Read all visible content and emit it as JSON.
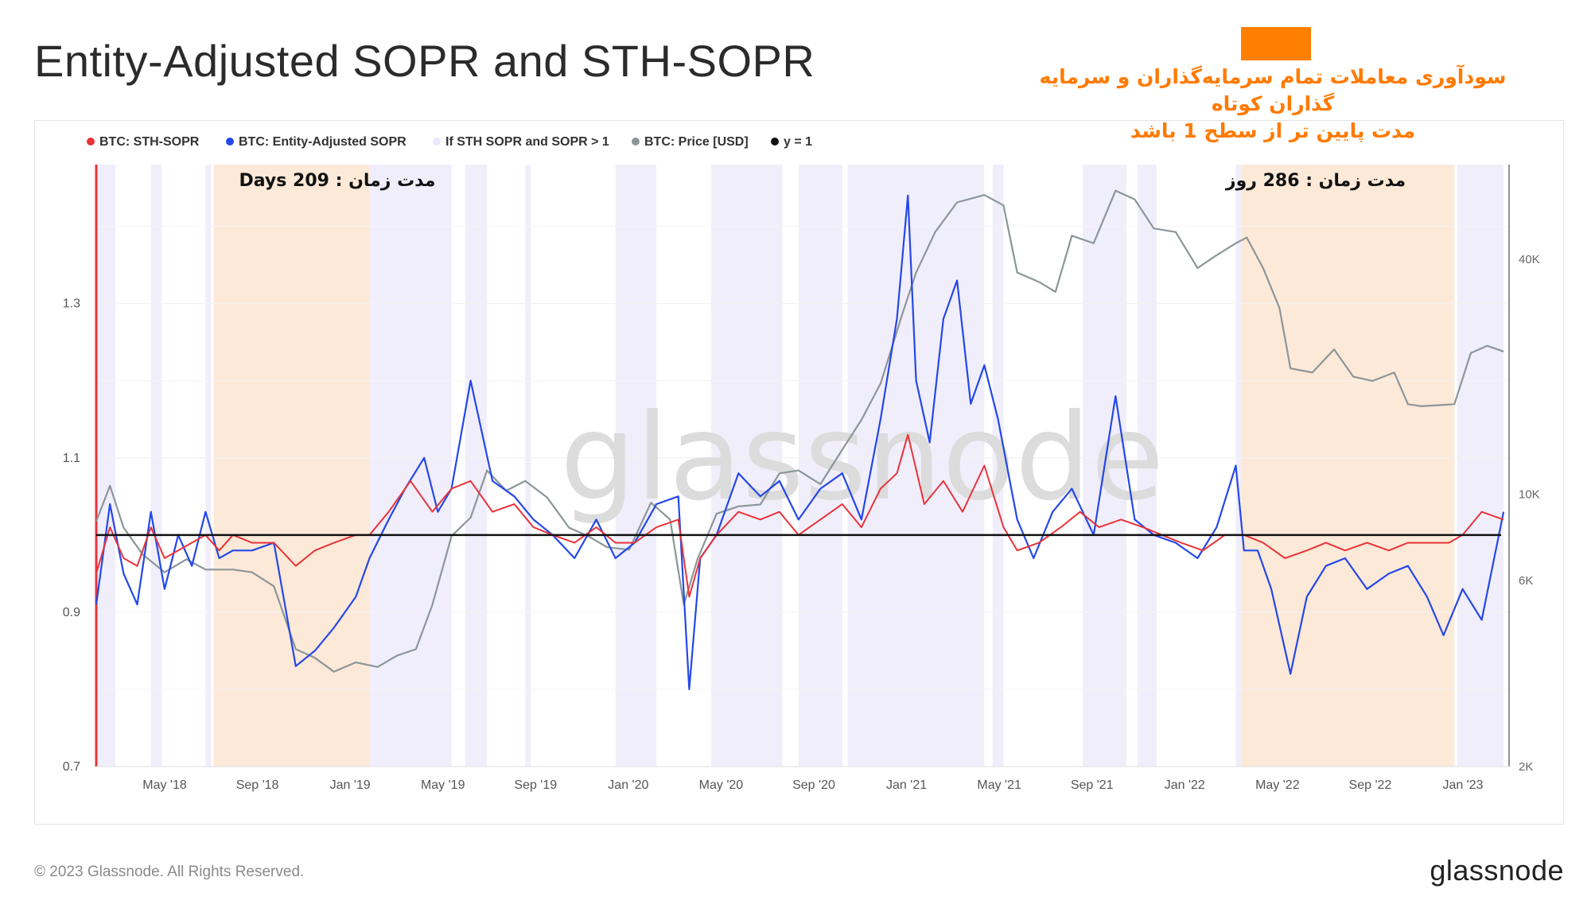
{
  "title": "Entity-Adjusted SOPR and STH-SOPR",
  "annotation": {
    "line1": "سودآوری معاملات تمام سرمایه‌گذاران و سرمایه",
    "line2": "گذاران کوتاه",
    "line3": "مدت پایین تر از سطح 1 باشد",
    "color": "#ff7f00"
  },
  "footer": {
    "copyright": "© 2023 Glassnode. All Rights Reserved.",
    "logo": "glassnode"
  },
  "chart_data": {
    "type": "line",
    "watermark": "glassnode",
    "legend": [
      {
        "name": "BTC: STH-SOPR",
        "color": "#e8343a"
      },
      {
        "name": "BTC: Entity-Adjusted SOPR",
        "color": "#2448e8"
      },
      {
        "name": "If STH SOPR and SOPR > 1",
        "color": "#ece8fb"
      },
      {
        "name": "BTC: Price [USD]",
        "color": "#8c9699"
      },
      {
        "name": "y = 1",
        "color": "#111111"
      }
    ],
    "x_ticks": [
      "May '18",
      "Sep '18",
      "Jan '19",
      "May '19",
      "Sep '19",
      "Jan '20",
      "May '20",
      "Sep '20",
      "Jan '21",
      "May '21",
      "Sep '21",
      "Jan '22",
      "May '22",
      "Sep '22",
      "Jan '23"
    ],
    "x_range": [
      2018.05,
      2023.22
    ],
    "y_left": {
      "range": [
        0.7,
        1.48
      ],
      "ticks": [
        0.7,
        0.9,
        1.1,
        1.3
      ]
    },
    "y_right": {
      "scale": "log",
      "range": [
        2000,
        70000
      ],
      "ticks": [
        2000,
        6000,
        10000,
        40000
      ],
      "tick_labels": [
        "2K",
        "6K",
        "10K",
        "40K"
      ]
    },
    "durations": [
      {
        "label": "مدت زمان : 209 Days",
        "start": 2018.48,
        "end": 2019.05
      },
      {
        "label": "مدت زمان : 286 روز",
        "start": 2022.24,
        "end": 2023.02
      }
    ],
    "highlight_periods": [
      [
        2018.05,
        2018.12
      ],
      [
        2018.25,
        2018.29
      ],
      [
        2018.45,
        2018.47
      ],
      [
        2019.05,
        2019.35
      ],
      [
        2019.4,
        2019.48
      ],
      [
        2019.62,
        2019.64
      ],
      [
        2019.95,
        2020.1
      ],
      [
        2020.3,
        2020.56
      ],
      [
        2020.62,
        2020.78
      ],
      [
        2020.8,
        2021.3
      ],
      [
        2021.33,
        2021.37
      ],
      [
        2021.66,
        2021.82
      ],
      [
        2021.86,
        2021.93
      ],
      [
        2022.22,
        2022.24
      ],
      [
        2023.03,
        2023.2
      ]
    ],
    "series": [
      {
        "name": "BTC: Price [USD]",
        "axis": "right",
        "x": [
          2018.05,
          2018.1,
          2018.15,
          2018.22,
          2018.3,
          2018.38,
          2018.45,
          2018.55,
          2018.62,
          2018.7,
          2018.78,
          2018.85,
          2018.92,
          2019.0,
          2019.08,
          2019.15,
          2019.22,
          2019.28,
          2019.35,
          2019.42,
          2019.48,
          2019.55,
          2019.62,
          2019.7,
          2019.78,
          2019.85,
          2019.92,
          2020.0,
          2020.08,
          2020.15,
          2020.2,
          2020.25,
          2020.32,
          2020.4,
          2020.48,
          2020.55,
          2020.62,
          2020.7,
          2020.78,
          2020.85,
          2020.92,
          2021.0,
          2021.05,
          2021.12,
          2021.2,
          2021.3,
          2021.37,
          2021.42,
          2021.5,
          2021.56,
          2021.62,
          2021.7,
          2021.78,
          2021.85,
          2021.92,
          2022.0,
          2022.08,
          2022.15,
          2022.22,
          2022.26,
          2022.32,
          2022.38,
          2022.42,
          2022.5,
          2022.58,
          2022.65,
          2022.72,
          2022.8,
          2022.85,
          2022.9,
          2022.96,
          2023.02,
          2023.08,
          2023.14,
          2023.2
        ],
        "y": [
          8500,
          10500,
          8200,
          7000,
          6300,
          6800,
          6400,
          6400,
          6300,
          5800,
          4000,
          3800,
          3500,
          3700,
          3600,
          3850,
          4000,
          5200,
          7800,
          8700,
          11500,
          10200,
          10800,
          9800,
          8200,
          7800,
          7300,
          7200,
          9500,
          8600,
          5200,
          6800,
          8900,
          9300,
          9400,
          11300,
          11500,
          10600,
          13000,
          15500,
          19200,
          29000,
          37000,
          47000,
          56000,
          58500,
          55000,
          37000,
          35000,
          33000,
          46000,
          44000,
          60000,
          57000,
          48000,
          47000,
          38000,
          41000,
          44000,
          45500,
          38000,
          30000,
          21000,
          20500,
          23500,
          20000,
          19500,
          20500,
          17000,
          16800,
          16900,
          17000,
          23000,
          24000,
          23200
        ]
      },
      {
        "name": "BTC: Entity-Adjusted SOPR",
        "axis": "left",
        "x": [
          2018.05,
          2018.1,
          2018.15,
          2018.2,
          2018.25,
          2018.3,
          2018.35,
          2018.4,
          2018.45,
          2018.5,
          2018.55,
          2018.62,
          2018.7,
          2018.78,
          2018.85,
          2018.92,
          2019.0,
          2019.05,
          2019.12,
          2019.18,
          2019.25,
          2019.3,
          2019.35,
          2019.42,
          2019.5,
          2019.58,
          2019.65,
          2019.72,
          2019.8,
          2019.88,
          2019.95,
          2020.02,
          2020.1,
          2020.18,
          2020.22,
          2020.26,
          2020.32,
          2020.4,
          2020.48,
          2020.55,
          2020.62,
          2020.7,
          2020.78,
          2020.85,
          2020.92,
          2020.98,
          2021.02,
          2021.05,
          2021.1,
          2021.15,
          2021.2,
          2021.25,
          2021.3,
          2021.35,
          2021.42,
          2021.48,
          2021.55,
          2021.62,
          2021.7,
          2021.78,
          2021.85,
          2021.92,
          2022.0,
          2022.08,
          2022.15,
          2022.22,
          2022.25,
          2022.3,
          2022.35,
          2022.42,
          2022.48,
          2022.55,
          2022.62,
          2022.7,
          2022.78,
          2022.85,
          2022.92,
          2022.98,
          2023.05,
          2023.12,
          2023.2
        ],
        "y": [
          0.91,
          1.04,
          0.95,
          0.91,
          1.03,
          0.93,
          1.0,
          0.96,
          1.03,
          0.97,
          0.98,
          0.98,
          0.99,
          0.83,
          0.85,
          0.88,
          0.92,
          0.97,
          1.02,
          1.06,
          1.1,
          1.03,
          1.06,
          1.2,
          1.07,
          1.05,
          1.02,
          1.0,
          0.97,
          1.02,
          0.97,
          0.99,
          1.04,
          1.05,
          0.8,
          0.97,
          1.0,
          1.08,
          1.05,
          1.07,
          1.02,
          1.06,
          1.08,
          1.02,
          1.15,
          1.28,
          1.44,
          1.2,
          1.12,
          1.28,
          1.33,
          1.17,
          1.22,
          1.15,
          1.02,
          0.97,
          1.03,
          1.06,
          1.0,
          1.18,
          1.02,
          1.0,
          0.99,
          0.97,
          1.01,
          1.09,
          0.98,
          0.98,
          0.93,
          0.82,
          0.92,
          0.96,
          0.97,
          0.93,
          0.95,
          0.96,
          0.92,
          0.87,
          0.93,
          0.89,
          1.03
        ]
      },
      {
        "name": "BTC: STH-SOPR",
        "axis": "left",
        "x": [
          2018.05,
          2018.1,
          2018.15,
          2018.2,
          2018.25,
          2018.3,
          2018.35,
          2018.4,
          2018.45,
          2018.5,
          2018.55,
          2018.62,
          2018.7,
          2018.78,
          2018.85,
          2018.92,
          2019.0,
          2019.05,
          2019.12,
          2019.2,
          2019.28,
          2019.35,
          2019.42,
          2019.5,
          2019.58,
          2019.65,
          2019.72,
          2019.8,
          2019.88,
          2019.95,
          2020.02,
          2020.1,
          2020.18,
          2020.22,
          2020.26,
          2020.32,
          2020.4,
          2020.48,
          2020.55,
          2020.62,
          2020.7,
          2020.78,
          2020.85,
          2020.92,
          2020.98,
          2021.02,
          2021.08,
          2021.15,
          2021.22,
          2021.3,
          2021.37,
          2021.42,
          2021.5,
          2021.58,
          2021.65,
          2021.72,
          2021.8,
          2021.88,
          2021.95,
          2022.02,
          2022.1,
          2022.18,
          2022.25,
          2022.32,
          2022.4,
          2022.48,
          2022.55,
          2022.62,
          2022.7,
          2022.78,
          2022.85,
          2022.92,
          2023.0,
          2023.05,
          2023.12,
          2023.2
        ],
        "y": [
          0.95,
          1.01,
          0.97,
          0.96,
          1.01,
          0.97,
          0.98,
          0.99,
          1.0,
          0.98,
          1.0,
          0.99,
          0.99,
          0.96,
          0.98,
          0.99,
          1.0,
          1.0,
          1.03,
          1.07,
          1.03,
          1.06,
          1.07,
          1.03,
          1.04,
          1.01,
          1.0,
          0.99,
          1.01,
          0.99,
          0.99,
          1.01,
          1.02,
          0.92,
          0.97,
          1.0,
          1.03,
          1.02,
          1.03,
          1.0,
          1.02,
          1.04,
          1.01,
          1.06,
          1.08,
          1.13,
          1.04,
          1.07,
          1.03,
          1.09,
          1.01,
          0.98,
          0.99,
          1.01,
          1.03,
          1.01,
          1.02,
          1.01,
          1.0,
          0.99,
          0.98,
          1.0,
          1.0,
          0.99,
          0.97,
          0.98,
          0.99,
          0.98,
          0.99,
          0.98,
          0.99,
          0.99,
          0.99,
          1.0,
          1.03,
          1.02
        ]
      }
    ],
    "hline": 1.0
  }
}
